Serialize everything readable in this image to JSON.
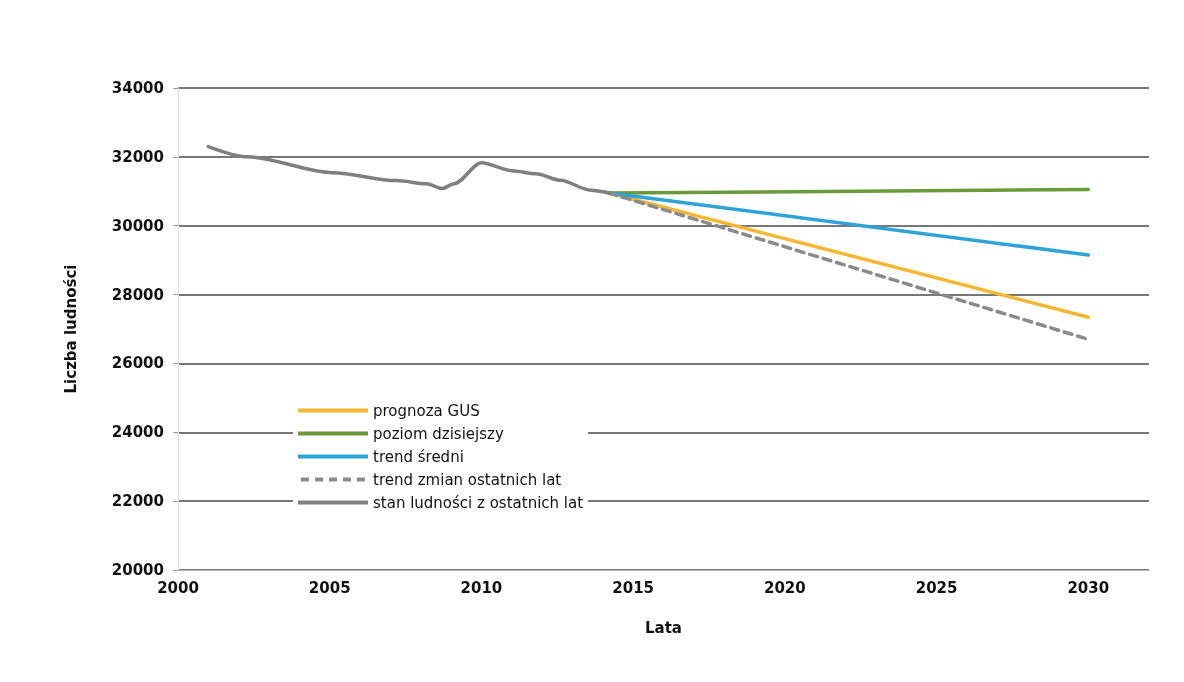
{
  "chart_data": {
    "type": "line",
    "xlabel": "Lata",
    "ylabel": "Liczba ludności",
    "xlim": [
      2000,
      2032
    ],
    "xticks": [
      2000,
      2005,
      2010,
      2015,
      2020,
      2025,
      2030
    ],
    "ylim": [
      20000,
      34000
    ],
    "yticks": [
      20000,
      22000,
      24000,
      26000,
      28000,
      30000,
      32000,
      34000
    ],
    "grid": "y",
    "legend": "bottom left",
    "series": [
      {
        "name": "prognoza GUS",
        "color": "#f5b731",
        "line_style": "solid",
        "x": [
          2014.2,
          2030
        ],
        "values": [
          30950,
          27340
        ]
      },
      {
        "name": "poziom dzisiejszy",
        "color": "#6a9a3a",
        "line_style": "solid",
        "x": [
          2014.2,
          2030
        ],
        "values": [
          30950,
          31050
        ]
      },
      {
        "name": "trend średni",
        "color": "#2ea3d8",
        "line_style": "solid",
        "x": [
          2014.2,
          2030
        ],
        "values": [
          30950,
          29150
        ]
      },
      {
        "name": "trend zmian ostatnich lat",
        "color": "#8a8a8a",
        "line_style": "dashed",
        "x": [
          2014.2,
          2030
        ],
        "values": [
          30950,
          26700
        ]
      },
      {
        "name": "stan ludności z ostatnich lat",
        "color": "#7f7f7f",
        "line_style": "solid",
        "x": [
          2001,
          2002.3,
          2005.1,
          2007.2,
          2008.2,
          2008.7,
          2009.1,
          2010,
          2011,
          2011.8,
          2012.6,
          2013.6,
          2014.2
        ],
        "values": [
          32300,
          32000,
          31540,
          31310,
          31220,
          31080,
          31220,
          31830,
          31600,
          31510,
          31320,
          31030,
          30950
        ]
      }
    ]
  }
}
